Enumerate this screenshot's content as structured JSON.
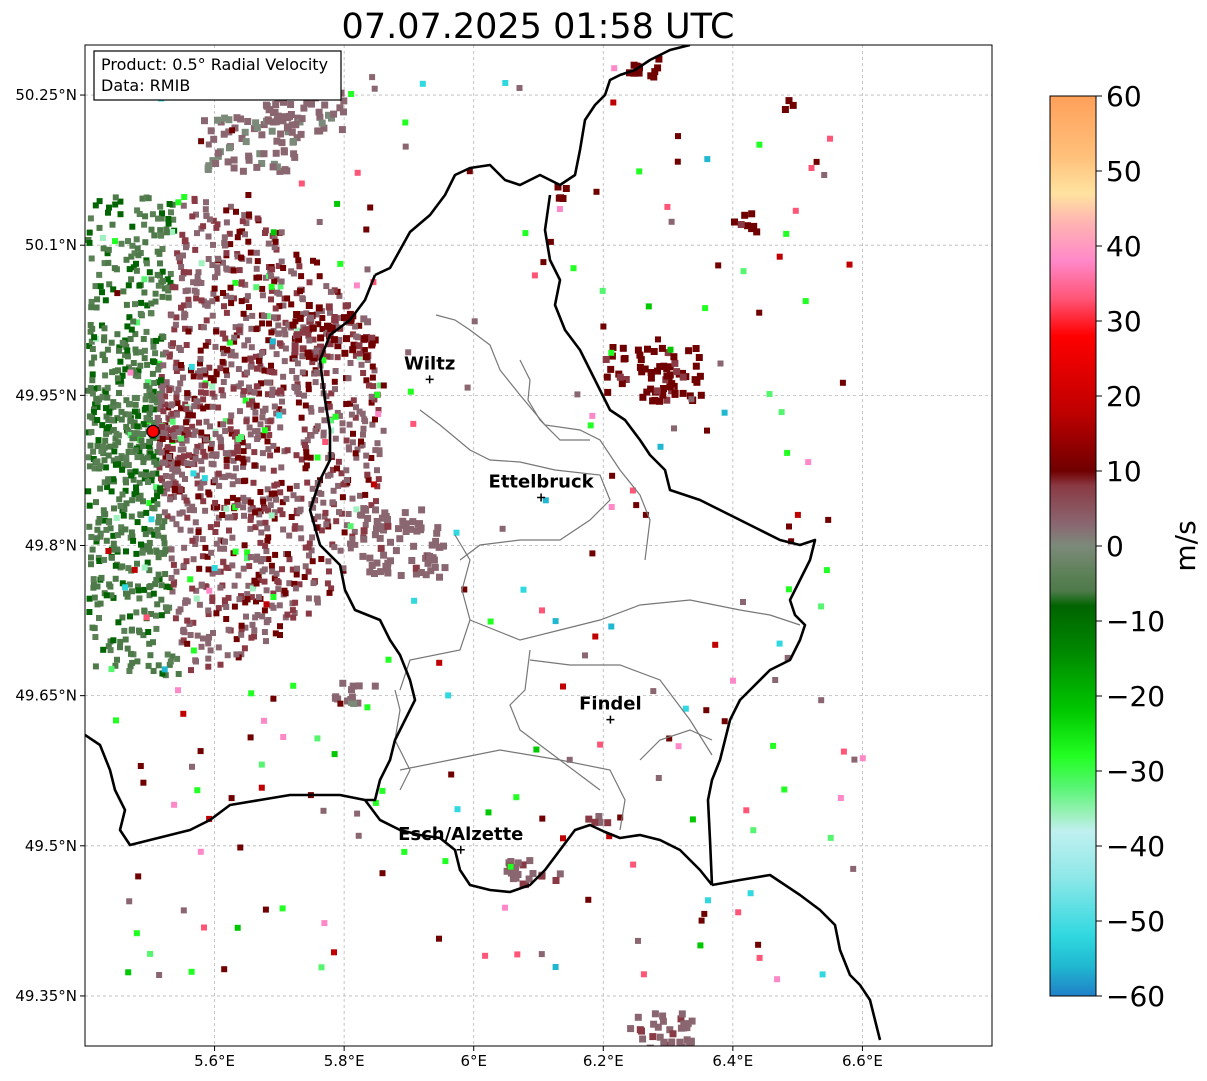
{
  "title": "07.07.2025 01:58 UTC",
  "info_box": {
    "product": "Product: 0.5° Radial Velocity",
    "source": "Data: RMIB"
  },
  "map": {
    "lon_range": [
      5.4,
      6.8
    ],
    "lat_range": [
      49.3,
      50.3
    ],
    "x_ticks": [
      {
        "value": 5.6,
        "label": "5.6°E"
      },
      {
        "value": 5.8,
        "label": "5.8°E"
      },
      {
        "value": 6.0,
        "label": "6°E"
      },
      {
        "value": 6.2,
        "label": "6.2°E"
      },
      {
        "value": 6.4,
        "label": "6.4°E"
      },
      {
        "value": 6.6,
        "label": "6.6°E"
      }
    ],
    "y_ticks": [
      {
        "value": 50.25,
        "label": "50.25°N"
      },
      {
        "value": 50.1,
        "label": "50.1°N"
      },
      {
        "value": 49.95,
        "label": "49.95°N"
      },
      {
        "value": 49.8,
        "label": "49.8°N"
      },
      {
        "value": 49.65,
        "label": "49.65°N"
      },
      {
        "value": 49.5,
        "label": "49.5°N"
      },
      {
        "value": 49.35,
        "label": "49.35°N"
      }
    ],
    "grid": true,
    "radar_site": {
      "lon": 5.505,
      "lat": 49.914,
      "color": "#ff0000"
    },
    "cities": [
      {
        "name": "Wiltz",
        "lon": 5.932,
        "lat": 49.966
      },
      {
        "name": "Ettelbruck",
        "lon": 6.104,
        "lat": 49.848
      },
      {
        "name": "Findel",
        "lon": 6.211,
        "lat": 49.626
      },
      {
        "name": "Esch/Alzette",
        "lon": 5.98,
        "lat": 49.496
      }
    ]
  },
  "colorbar": {
    "label": "m/s",
    "min": -60,
    "max": 60,
    "ticks": [
      {
        "value": 60,
        "label": "60"
      },
      {
        "value": 50,
        "label": "50"
      },
      {
        "value": 40,
        "label": "40"
      },
      {
        "value": 30,
        "label": "30"
      },
      {
        "value": 20,
        "label": "20"
      },
      {
        "value": 10,
        "label": "10"
      },
      {
        "value": 0,
        "label": "0"
      },
      {
        "value": -10,
        "label": "−10"
      },
      {
        "value": -20,
        "label": "−20"
      },
      {
        "value": -30,
        "label": "−30"
      },
      {
        "value": -40,
        "label": "−40"
      },
      {
        "value": -50,
        "label": "−50"
      },
      {
        "value": -60,
        "label": "−60"
      }
    ],
    "stops": [
      {
        "v": 60,
        "color": "#ffa05a"
      },
      {
        "v": 52,
        "color": "#ffc07a"
      },
      {
        "v": 47,
        "color": "#ffe3a0"
      },
      {
        "v": 43,
        "color": "#ffb3b3"
      },
      {
        "v": 38,
        "color": "#ff88c8"
      },
      {
        "v": 33,
        "color": "#ff5577"
      },
      {
        "v": 28,
        "color": "#ff0000"
      },
      {
        "v": 18,
        "color": "#c00000"
      },
      {
        "v": 10,
        "color": "#700000"
      },
      {
        "v": 8,
        "color": "#8a3a44"
      },
      {
        "v": 3,
        "color": "#8a6670"
      },
      {
        "v": 0,
        "color": "#7c8a7a"
      },
      {
        "v": -4,
        "color": "#5a8055"
      },
      {
        "v": -6,
        "color": "#4e7a4a"
      },
      {
        "v": -8,
        "color": "#006400"
      },
      {
        "v": -14,
        "color": "#008800"
      },
      {
        "v": -22,
        "color": "#00c800"
      },
      {
        "v": -28,
        "color": "#22ff22"
      },
      {
        "v": -32,
        "color": "#55f570"
      },
      {
        "v": -36,
        "color": "#a0f0c0"
      },
      {
        "v": -38,
        "color": "#c0f0f0"
      },
      {
        "v": -44,
        "color": "#90e8e8"
      },
      {
        "v": -52,
        "color": "#30d8e0"
      },
      {
        "v": -56,
        "color": "#20b8d0"
      },
      {
        "v": -60,
        "color": "#2080c8"
      }
    ]
  }
}
